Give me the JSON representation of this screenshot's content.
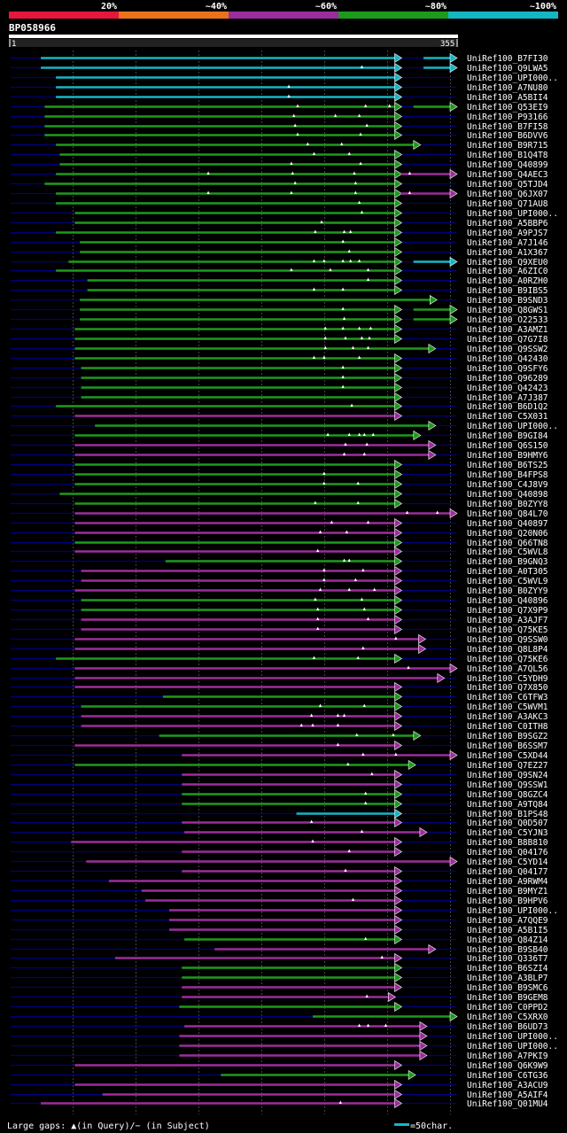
{
  "colors": {
    "pct20": "#e4173c",
    "pct40": "#e8731c",
    "pct60": "#9c2d9c",
    "pct80": "#1d9a1d",
    "pct100": "#15b6c4",
    "subject_line": "#000080",
    "gridline": "#444444"
  },
  "legend": {
    "segments": [
      {
        "label": "20%",
        "color": "#e4173c"
      },
      {
        "label": "~40%",
        "color": "#e8731c"
      },
      {
        "label": "~60%",
        "color": "#9c2d9c"
      },
      {
        "label": "~80%",
        "color": "#1d9a1d"
      },
      {
        "label": "~100%",
        "color": "#15b6c4"
      }
    ]
  },
  "query": {
    "id": "BP058966",
    "start_label": "1",
    "end_label": "355"
  },
  "footer": {
    "gaps_note": "Large gaps: ▲(in Query)/− (in Subject)",
    "scale_note": "=50char."
  },
  "chart_data": {
    "type": "alignment-overview",
    "title": "BP058966",
    "x_range": [
      1,
      355
    ],
    "hits": [
      {
        "name": "UniRef100_B7FI30",
        "s": 25,
        "e": 311,
        "c": "c",
        "ext": [
          [
            329,
            355,
            "c"
          ]
        ],
        "g": []
      },
      {
        "name": "UniRef100_Q9LWA5",
        "s": 25,
        "e": 311,
        "c": "c",
        "ext": [
          [
            329,
            355,
            "c"
          ]
        ],
        "g": [
          280
        ]
      },
      {
        "name": "UniRef100_UPI000..",
        "s": 37,
        "e": 311,
        "c": "c",
        "ext": [],
        "g": []
      },
      {
        "name": "UniRef100_A7NU80",
        "s": 37,
        "e": 311,
        "c": "c",
        "ext": [],
        "g": [
          222
        ]
      },
      {
        "name": "UniRef100_A5BII4",
        "s": 37,
        "e": 311,
        "c": "c",
        "ext": [],
        "g": [
          222
        ]
      },
      {
        "name": "UniRef100_Q53EI9",
        "s": 28,
        "e": 311,
        "c": "g",
        "ext": [
          [
            321,
            355,
            "g"
          ]
        ],
        "g": [
          229,
          283,
          302
        ]
      },
      {
        "name": "UniRef100_P93166",
        "s": 28,
        "e": 311,
        "c": "g",
        "ext": [],
        "g": [
          226,
          259,
          278
        ]
      },
      {
        "name": "UniRef100_B7FI58",
        "s": 28,
        "e": 311,
        "c": "g",
        "ext": [],
        "g": [
          227,
          284
        ]
      },
      {
        "name": "UniRef100_B6DVV6",
        "s": 28,
        "e": 311,
        "c": "g",
        "ext": [],
        "g": [
          229,
          279
        ]
      },
      {
        "name": "UniRef100_B9R715",
        "s": 37,
        "e": 326,
        "c": "g",
        "ext": [],
        "g": [
          237,
          264
        ]
      },
      {
        "name": "UniRef100_B1Q4T8",
        "s": 40,
        "e": 311,
        "c": "g",
        "ext": [],
        "g": [
          242,
          270
        ]
      },
      {
        "name": "UniRef100_Q40899",
        "s": 40,
        "e": 311,
        "c": "g",
        "ext": [],
        "g": [
          224,
          279
        ]
      },
      {
        "name": "UniRef100_Q4AEC3",
        "s": 37,
        "e": 311,
        "c": "g",
        "ext": [
          [
            311,
            355,
            "m"
          ]
        ],
        "g": [
          158,
          225,
          274,
          318
        ]
      },
      {
        "name": "UniRef100_Q5TJD4",
        "s": 28,
        "e": 311,
        "c": "g",
        "ext": [],
        "g": [
          227,
          275
        ]
      },
      {
        "name": "UniRef100_Q6JX07",
        "s": 37,
        "e": 311,
        "c": "g",
        "ext": [
          [
            311,
            355,
            "m"
          ]
        ],
        "g": [
          158,
          224,
          275,
          318
        ]
      },
      {
        "name": "UniRef100_Q71AU8",
        "s": 37,
        "e": 311,
        "c": "g",
        "ext": [],
        "g": [
          278
        ]
      },
      {
        "name": "UniRef100_UPI000..",
        "s": 52,
        "e": 311,
        "c": "g",
        "ext": [],
        "g": [
          280
        ]
      },
      {
        "name": "UniRef100_A5BBP6",
        "s": 52,
        "e": 311,
        "c": "g",
        "ext": [],
        "g": [
          248
        ]
      },
      {
        "name": "UniRef100_A9PJS7",
        "s": 37,
        "e": 311,
        "c": "g",
        "ext": [],
        "g": [
          243,
          266,
          271
        ]
      },
      {
        "name": "UniRef100_A7J146",
        "s": 56,
        "e": 311,
        "c": "g",
        "ext": [],
        "g": [
          265
        ]
      },
      {
        "name": "UniRef100_A1X367",
        "s": 56,
        "e": 311,
        "c": "g",
        "ext": [],
        "g": [
          270
        ]
      },
      {
        "name": "UniRef100_Q9XEU0",
        "s": 47,
        "e": 311,
        "c": "g",
        "ext": [
          [
            321,
            355,
            "c"
          ]
        ],
        "g": [
          242,
          250,
          265,
          271,
          278
        ]
      },
      {
        "name": "UniRef100_A6ZIC0",
        "s": 37,
        "e": 311,
        "c": "g",
        "ext": [],
        "g": [
          224,
          255,
          285
        ]
      },
      {
        "name": "UniRef100_A0RZH0",
        "s": 62,
        "e": 311,
        "c": "g",
        "ext": [],
        "g": [
          285
        ]
      },
      {
        "name": "UniRef100_B9IBS5",
        "s": 62,
        "e": 311,
        "c": "g",
        "ext": [],
        "g": [
          242,
          265
        ]
      },
      {
        "name": "UniRef100_B9SND3",
        "s": 56,
        "e": 339,
        "c": "g",
        "ext": [],
        "g": []
      },
      {
        "name": "UniRef100_Q8GWS1",
        "s": 56,
        "e": 311,
        "c": "g",
        "ext": [
          [
            321,
            355,
            "g"
          ]
        ],
        "g": [
          265
        ]
      },
      {
        "name": "UniRef100_O22533",
        "s": 56,
        "e": 311,
        "c": "g",
        "ext": [
          [
            321,
            355,
            "g"
          ]
        ],
        "g": [
          266
        ]
      },
      {
        "name": "UniRef100_A3AMZ1",
        "s": 52,
        "e": 311,
        "c": "g",
        "ext": [],
        "g": [
          251,
          265,
          278,
          287
        ]
      },
      {
        "name": "UniRef100_Q7G7I8",
        "s": 52,
        "e": 311,
        "c": "g",
        "ext": [],
        "g": [
          251,
          267,
          280,
          286
        ]
      },
      {
        "name": "UniRef100_Q9SSW2",
        "s": 52,
        "e": 338,
        "c": "g",
        "ext": [],
        "g": [
          251,
          273,
          285
        ]
      },
      {
        "name": "UniRef100_Q42430",
        "s": 52,
        "e": 311,
        "c": "g",
        "ext": [],
        "g": [
          242,
          250,
          278
        ]
      },
      {
        "name": "UniRef100_Q9SFY6",
        "s": 57,
        "e": 311,
        "c": "g",
        "ext": [],
        "g": [
          265
        ]
      },
      {
        "name": "UniRef100_Q96289",
        "s": 57,
        "e": 311,
        "c": "g",
        "ext": [],
        "g": [
          265
        ]
      },
      {
        "name": "UniRef100_Q42423",
        "s": 57,
        "e": 311,
        "c": "g",
        "ext": [],
        "g": [
          265
        ]
      },
      {
        "name": "UniRef100_A7J387",
        "s": 57,
        "e": 311,
        "c": "g",
        "ext": [],
        "g": []
      },
      {
        "name": "UniRef100_B6D1Q2",
        "s": 37,
        "e": 311,
        "c": "g",
        "ext": [],
        "g": [
          272
        ]
      },
      {
        "name": "UniRef100_C5X031",
        "s": 52,
        "e": 311,
        "c": "m",
        "ext": [],
        "g": []
      },
      {
        "name": "UniRef100_UPI000..",
        "s": 68,
        "e": 338,
        "c": "g",
        "ext": [],
        "g": []
      },
      {
        "name": "UniRef100_B9GI84",
        "s": 52,
        "e": 326,
        "c": "g",
        "ext": [],
        "g": [
          253,
          270,
          278,
          282,
          289
        ]
      },
      {
        "name": "UniRef100_Q6S150",
        "s": 52,
        "e": 338,
        "c": "m",
        "ext": [],
        "g": [
          267,
          284
        ]
      },
      {
        "name": "UniRef100_B9HMY6",
        "s": 52,
        "e": 338,
        "c": "m",
        "ext": [],
        "g": [
          266,
          282
        ]
      },
      {
        "name": "UniRef100_B6TS25",
        "s": 52,
        "e": 311,
        "c": "g",
        "ext": [],
        "g": []
      },
      {
        "name": "UniRef100_B4FPS8",
        "s": 52,
        "e": 311,
        "c": "g",
        "ext": [],
        "g": [
          250
        ]
      },
      {
        "name": "UniRef100_C4J8V9",
        "s": 52,
        "e": 311,
        "c": "g",
        "ext": [],
        "g": [
          250,
          277
        ]
      },
      {
        "name": "UniRef100_Q40898",
        "s": 40,
        "e": 311,
        "c": "g",
        "ext": [],
        "g": []
      },
      {
        "name": "UniRef100_B0ZYY8",
        "s": 52,
        "e": 311,
        "c": "g",
        "ext": [],
        "g": [
          243,
          277
        ]
      },
      {
        "name": "UniRef100_Q84L70",
        "s": 52,
        "e": 355,
        "c": "m",
        "ext": [],
        "g": [
          316,
          340
        ]
      },
      {
        "name": "UniRef100_Q40897",
        "s": 52,
        "e": 311,
        "c": "m",
        "ext": [],
        "g": [
          256,
          285
        ]
      },
      {
        "name": "UniRef100_Q20N06",
        "s": 52,
        "e": 311,
        "c": "m",
        "ext": [],
        "g": [
          247,
          268
        ]
      },
      {
        "name": "UniRef100_Q66TN8",
        "s": 52,
        "e": 311,
        "c": "g",
        "ext": [],
        "g": []
      },
      {
        "name": "UniRef100_C5WVL8",
        "s": 52,
        "e": 311,
        "c": "m",
        "ext": [],
        "g": [
          245
        ]
      },
      {
        "name": "UniRef100_B9GNQ3",
        "s": 124,
        "e": 311,
        "c": "g",
        "ext": [],
        "g": [
          266,
          270
        ]
      },
      {
        "name": "UniRef100_A0T305",
        "s": 57,
        "e": 311,
        "c": "m",
        "ext": [],
        "g": [
          250,
          281
        ]
      },
      {
        "name": "UniRef100_C5WVL9",
        "s": 57,
        "e": 311,
        "c": "m",
        "ext": [],
        "g": [
          250,
          275
        ]
      },
      {
        "name": "UniRef100_B0ZYY9",
        "s": 52,
        "e": 311,
        "c": "m",
        "ext": [],
        "g": [
          247,
          270,
          290
        ]
      },
      {
        "name": "UniRef100_Q40896",
        "s": 57,
        "e": 311,
        "c": "g",
        "ext": [],
        "g": [
          243,
          280
        ]
      },
      {
        "name": "UniRef100_Q7X9P9",
        "s": 57,
        "e": 311,
        "c": "g",
        "ext": [],
        "g": [
          245,
          282
        ]
      },
      {
        "name": "UniRef100_A3AJF7",
        "s": 57,
        "e": 311,
        "c": "m",
        "ext": [],
        "g": [
          245,
          285
        ]
      },
      {
        "name": "UniRef100_Q75KE5",
        "s": 57,
        "e": 311,
        "c": "m",
        "ext": [],
        "g": [
          245
        ]
      },
      {
        "name": "UniRef100_Q9SSW0",
        "s": 52,
        "e": 330,
        "c": "m",
        "ext": [],
        "g": [
          307
        ]
      },
      {
        "name": "UniRef100_Q8L8P4",
        "s": 52,
        "e": 330,
        "c": "m",
        "ext": [],
        "g": [
          281
        ]
      },
      {
        "name": "UniRef100_Q75KE6",
        "s": 37,
        "e": 311,
        "c": "g",
        "ext": [],
        "g": [
          242,
          277
        ]
      },
      {
        "name": "UniRef100_A7QL56",
        "s": 52,
        "e": 355,
        "c": "m",
        "ext": [],
        "g": [
          317
        ]
      },
      {
        "name": "UniRef100_C5YDH9",
        "s": 52,
        "e": 345,
        "c": "m",
        "ext": [],
        "g": []
      },
      {
        "name": "UniRef100_Q7X850",
        "s": 52,
        "e": 311,
        "c": "m",
        "ext": [],
        "g": []
      },
      {
        "name": "UniRef100_C6TFW3",
        "s": 122,
        "e": 311,
        "c": "g",
        "ext": [],
        "g": []
      },
      {
        "name": "UniRef100_C5WVM1",
        "s": 57,
        "e": 311,
        "c": "g",
        "ext": [],
        "g": [
          247,
          282
        ]
      },
      {
        "name": "UniRef100_A3AKC3",
        "s": 57,
        "e": 311,
        "c": "m",
        "ext": [],
        "g": [
          240,
          261,
          266
        ]
      },
      {
        "name": "UniRef100_C0ITH8",
        "s": 57,
        "e": 311,
        "c": "m",
        "ext": [],
        "g": [
          232,
          241,
          261
        ]
      },
      {
        "name": "UniRef100_B9SGZ2",
        "s": 119,
        "e": 326,
        "c": "g",
        "ext": [],
        "g": [
          276,
          305
        ]
      },
      {
        "name": "UniRef100_B6SSM7",
        "s": 52,
        "e": 311,
        "c": "m",
        "ext": [],
        "g": [
          261
        ]
      },
      {
        "name": "UniRef100_C5XD44",
        "s": 137,
        "e": 355,
        "c": "m",
        "ext": [],
        "g": [
          281,
          307
        ]
      },
      {
        "name": "UniRef100_Q7EZ27",
        "s": 52,
        "e": 322,
        "c": "g",
        "ext": [],
        "g": [
          269
        ]
      },
      {
        "name": "UniRef100_Q9SN24",
        "s": 137,
        "e": 311,
        "c": "m",
        "ext": [],
        "g": [
          288
        ]
      },
      {
        "name": "UniRef100_Q9SSW1",
        "s": 137,
        "e": 311,
        "c": "m",
        "ext": [],
        "g": []
      },
      {
        "name": "UniRef100_Q8GZC4",
        "s": 137,
        "e": 311,
        "c": "g",
        "ext": [],
        "g": [
          283
        ]
      },
      {
        "name": "UniRef100_A9TQ84",
        "s": 137,
        "e": 311,
        "c": "g",
        "ext": [],
        "g": [
          283
        ]
      },
      {
        "name": "UniRef100_B1PS48",
        "s": 228,
        "e": 311,
        "c": "c",
        "ext": [],
        "g": []
      },
      {
        "name": "UniRef100_Q0D507",
        "s": 137,
        "e": 311,
        "c": "m",
        "ext": [],
        "g": [
          240
        ]
      },
      {
        "name": "UniRef100_C5YJN3",
        "s": 139,
        "e": 331,
        "c": "m",
        "ext": [],
        "g": [
          280
        ]
      },
      {
        "name": "UniRef100_B8B810",
        "s": 49,
        "e": 311,
        "c": "m",
        "ext": [],
        "g": [
          241
        ]
      },
      {
        "name": "UniRef100_Q04176",
        "s": 137,
        "e": 311,
        "c": "m",
        "ext": [],
        "g": [
          270
        ]
      },
      {
        "name": "UniRef100_C5YD14",
        "s": 61,
        "e": 355,
        "c": "m",
        "ext": [],
        "g": []
      },
      {
        "name": "UniRef100_Q04177",
        "s": 137,
        "e": 311,
        "c": "m",
        "ext": [],
        "g": [
          267
        ]
      },
      {
        "name": "UniRef100_A9RWM4",
        "s": 79,
        "e": 311,
        "c": "m",
        "ext": [],
        "g": []
      },
      {
        "name": "UniRef100_B9MYZ1",
        "s": 105,
        "e": 311,
        "c": "m",
        "ext": [],
        "g": []
      },
      {
        "name": "UniRef100_B9HPV6",
        "s": 108,
        "e": 311,
        "c": "m",
        "ext": [],
        "g": [
          273
        ]
      },
      {
        "name": "UniRef100_UPI000..",
        "s": 127,
        "e": 311,
        "c": "m",
        "ext": [],
        "g": []
      },
      {
        "name": "UniRef100_A7QQE9",
        "s": 127,
        "e": 311,
        "c": "m",
        "ext": [],
        "g": []
      },
      {
        "name": "UniRef100_A5B1I5",
        "s": 127,
        "e": 311,
        "c": "m",
        "ext": [],
        "g": []
      },
      {
        "name": "UniRef100_Q84Z14",
        "s": 139,
        "e": 311,
        "c": "g",
        "ext": [],
        "g": [
          283
        ]
      },
      {
        "name": "UniRef100_B9SB40",
        "s": 163,
        "e": 338,
        "c": "m",
        "ext": [],
        "g": []
      },
      {
        "name": "UniRef100_Q336T7",
        "s": 84,
        "e": 311,
        "c": "m",
        "ext": [],
        "g": [
          296
        ]
      },
      {
        "name": "UniRef100_B6SZI4",
        "s": 137,
        "e": 311,
        "c": "g",
        "ext": [],
        "g": []
      },
      {
        "name": "UniRef100_A3BLP7",
        "s": 137,
        "e": 311,
        "c": "g",
        "ext": [],
        "g": []
      },
      {
        "name": "UniRef100_B9SMC6",
        "s": 137,
        "e": 311,
        "c": "m",
        "ext": [],
        "g": []
      },
      {
        "name": "UniRef100_B9GEM8",
        "s": 137,
        "e": 306,
        "c": "m",
        "ext": [],
        "g": [
          284
        ]
      },
      {
        "name": "UniRef100_C0PPD2",
        "s": 135,
        "e": 311,
        "c": "g",
        "ext": [],
        "g": []
      },
      {
        "name": "UniRef100_C5XRX0",
        "s": 241,
        "e": 355,
        "c": "g",
        "ext": [],
        "g": []
      },
      {
        "name": "UniRef100_B6UD73",
        "s": 139,
        "e": 331,
        "c": "m",
        "ext": [],
        "g": [
          278,
          285,
          299
        ]
      },
      {
        "name": "UniRef100_UPI000..",
        "s": 135,
        "e": 331,
        "c": "m",
        "ext": [],
        "g": []
      },
      {
        "name": "UniRef100_UPI000..",
        "s": 135,
        "e": 331,
        "c": "m",
        "ext": [],
        "g": []
      },
      {
        "name": "UniRef100_A7PKI9",
        "s": 135,
        "e": 331,
        "c": "m",
        "ext": [],
        "g": []
      },
      {
        "name": "UniRef100_Q6K9W9",
        "s": 52,
        "e": 311,
        "c": "m",
        "ext": [],
        "g": []
      },
      {
        "name": "UniRef100_C6TG36",
        "s": 168,
        "e": 322,
        "c": "g",
        "ext": [],
        "g": []
      },
      {
        "name": "UniRef100_A3ACU9",
        "s": 52,
        "e": 311,
        "c": "m",
        "ext": [],
        "g": []
      },
      {
        "name": "UniRef100_A5AIF4",
        "s": 74,
        "e": 311,
        "c": "m",
        "ext": [],
        "g": []
      },
      {
        "name": "UniRef100_Q01MU4",
        "s": 25,
        "e": 311,
        "c": "m",
        "ext": [],
        "g": [
          263
        ]
      }
    ]
  }
}
